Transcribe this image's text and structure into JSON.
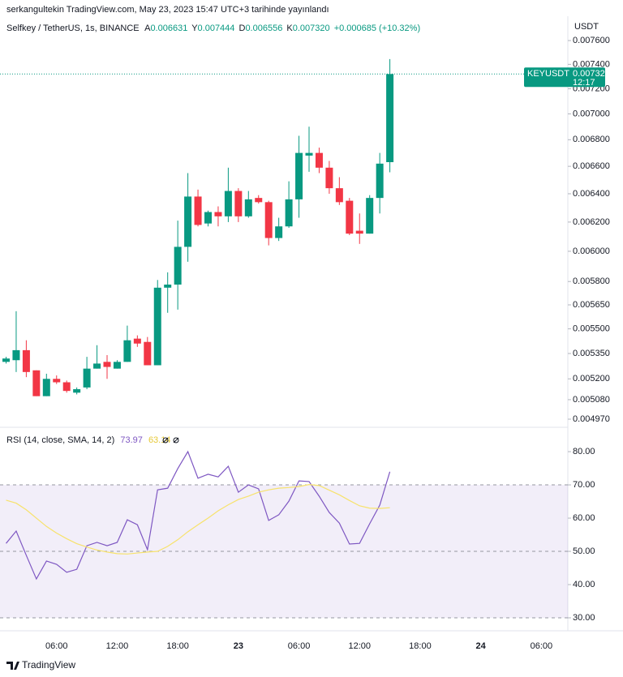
{
  "header": {
    "publisher": "serkangultekin TradingView.com, May 23, 2023 15:47 UTC+3 tarihinde yayınlandı"
  },
  "footer": {
    "brand": "TradingView"
  },
  "chart_data": [
    {
      "type": "candlestick",
      "title": "Selfkey / TetherUS, 1s, BINANCE",
      "ohlc_labels": {
        "open": "A",
        "high": "Y",
        "low": "D",
        "close": "K"
      },
      "change": "+0.000685 (+10.32%)",
      "currency": "USDT",
      "symbol": "KEYUSDT",
      "countdown": "12:17",
      "last_price": {
        "value": 0.00732,
        "label": "0.007320"
      },
      "up_color": "#089981",
      "down_color": "#f23645",
      "log_scale": true,
      "categories": [
        null,
        null,
        null,
        null,
        null,
        "06:00",
        null,
        null,
        null,
        null,
        null,
        "12:00",
        null,
        null,
        null,
        null,
        null,
        "18:00",
        null,
        null,
        null,
        null,
        null,
        "23",
        null,
        null,
        null,
        null,
        null,
        "06:00",
        null,
        null,
        null,
        null,
        null,
        "12:00",
        null,
        null,
        null,
        null,
        null,
        "18:00",
        null,
        null,
        null,
        null,
        null,
        "24",
        null,
        null,
        null,
        null,
        null,
        "06:00",
        null,
        null
      ],
      "open": [
        0.0053,
        0.00531,
        0.00537,
        0.00525,
        0.0051,
        0.0052,
        0.00518,
        0.00512,
        0.00515,
        0.00526,
        0.0053,
        0.00526,
        0.0053,
        0.00544,
        0.00542,
        0.00528,
        0.00576,
        0.00578,
        0.00603,
        0.00638,
        0.00619,
        0.00627,
        0.00624,
        0.00642,
        0.00624,
        0.00637,
        0.00634,
        0.00609,
        0.00617,
        0.00636,
        0.00668,
        0.0067,
        0.00659,
        0.00644,
        0.00635,
        0.00614,
        0.00612,
        0.00637,
        0.006631,
        null,
        null,
        null,
        null,
        null,
        null,
        null,
        null,
        null,
        null,
        null,
        null,
        null,
        null,
        null,
        null,
        null
      ],
      "high": [
        0.00533,
        0.00561,
        0.00543,
        0.00525,
        0.00523,
        0.00522,
        0.00519,
        0.00515,
        0.00533,
        0.0054,
        0.00534,
        0.00531,
        0.00552,
        0.00546,
        0.00545,
        0.00581,
        0.00586,
        0.00621,
        0.00655,
        0.00643,
        0.00628,
        0.00631,
        0.00659,
        0.00644,
        0.00642,
        0.00639,
        0.00635,
        0.00623,
        0.00649,
        0.00683,
        0.0069,
        0.00674,
        0.00664,
        0.00652,
        0.00637,
        0.00626,
        0.00639,
        0.0067,
        0.007444,
        null,
        null,
        null,
        null,
        null,
        null,
        null,
        null,
        null,
        null,
        null,
        null,
        null,
        null,
        null,
        null,
        null
      ],
      "low": [
        0.00529,
        0.00524,
        0.00521,
        0.0051,
        0.0051,
        0.00517,
        0.00512,
        0.00511,
        0.00514,
        0.00526,
        0.0052,
        0.00526,
        0.0053,
        0.00539,
        0.00528,
        0.00528,
        0.0056,
        0.00562,
        0.00593,
        0.00617,
        0.00617,
        0.00617,
        0.0062,
        0.0062,
        0.00623,
        0.00633,
        0.00604,
        0.00607,
        0.00616,
        0.00623,
        0.00656,
        0.00655,
        0.0064,
        0.00632,
        0.00611,
        0.00605,
        0.00612,
        0.00626,
        0.006556,
        null,
        null,
        null,
        null,
        null,
        null,
        null,
        null,
        null,
        null,
        null,
        null,
        null,
        null,
        null,
        null,
        null
      ],
      "close": [
        0.00532,
        0.00537,
        0.00524,
        0.0051,
        0.0052,
        0.00518,
        0.00513,
        0.00514,
        0.00526,
        0.00529,
        0.00527,
        0.0053,
        0.00543,
        0.00541,
        0.00528,
        0.00576,
        0.00578,
        0.00603,
        0.00638,
        0.00618,
        0.00627,
        0.00624,
        0.00642,
        0.00624,
        0.00636,
        0.00634,
        0.00609,
        0.00617,
        0.00636,
        0.0067,
        0.0067,
        0.00659,
        0.00644,
        0.00634,
        0.00612,
        0.00612,
        0.00637,
        0.00662,
        0.00732,
        null,
        null,
        null,
        null,
        null,
        null,
        null,
        null,
        null,
        null,
        null,
        null,
        null,
        null,
        null,
        null,
        null
      ],
      "ylim": [
        0.004934,
        0.007775
      ],
      "yticks": [
        {
          "value": 0.00497,
          "label": "0.004970"
        },
        {
          "value": 0.00508,
          "label": "0.005080"
        },
        {
          "value": 0.0052,
          "label": "0.005200"
        },
        {
          "value": 0.00535,
          "label": "0.005350"
        },
        {
          "value": 0.0055,
          "label": "0.005500"
        },
        {
          "value": 0.00565,
          "label": "0.005650"
        },
        {
          "value": 0.0058,
          "label": "0.005800"
        },
        {
          "value": 0.006,
          "label": "0.006000"
        },
        {
          "value": 0.0062,
          "label": "0.006200"
        },
        {
          "value": 0.0064,
          "label": "0.006400"
        },
        {
          "value": 0.0066,
          "label": "0.006600"
        },
        {
          "value": 0.0068,
          "label": "0.006800"
        },
        {
          "value": 0.007,
          "label": "0.007000"
        },
        {
          "value": 0.0072,
          "label": "0.007200"
        },
        {
          "value": 0.0074,
          "label": "0.007400"
        },
        {
          "value": 0.0076,
          "label": "0.007600"
        }
      ]
    },
    {
      "type": "line",
      "title": "RSI (14, close, SMA, 14, 2)",
      "band": [
        30,
        70
      ],
      "band_color": "rgba(126,87,194,0.1)",
      "hlines": [
        70,
        50,
        30
      ],
      "series": [
        {
          "color": "#7e57c2",
          "values": [
            52.4,
            56.1,
            48.8,
            41.7,
            47.1,
            46.1,
            43.7,
            44.6,
            51.7,
            52.7,
            51.7,
            52.7,
            59.5,
            58.0,
            50.5,
            68.5,
            69.0,
            74.9,
            80.0,
            72.0,
            73.2,
            72.4,
            75.6,
            67.8,
            70.0,
            68.8,
            59.3,
            61.0,
            65.1,
            71.2,
            71.0,
            66.6,
            61.7,
            58.5,
            52.2,
            52.4,
            58.3,
            63.9,
            73.97,
            null,
            null,
            null,
            null,
            null,
            null,
            null,
            null,
            null,
            null,
            null,
            null,
            null,
            null,
            null,
            null,
            null
          ]
        },
        {
          "color": "#f7e26b",
          "values": [
            65.4,
            64.5,
            62.5,
            60.0,
            57.5,
            55.5,
            53.8,
            52.3,
            51.3,
            50.4,
            49.8,
            49.3,
            49.2,
            49.5,
            49.8,
            50.0,
            51.5,
            53.5,
            55.9,
            58.0,
            60.0,
            62.2,
            64.0,
            65.6,
            66.6,
            67.8,
            68.5,
            69.0,
            69.2,
            69.5,
            70.1,
            69.8,
            68.4,
            67.0,
            65.3,
            63.7,
            63.0,
            62.9,
            63.14,
            null,
            null,
            null,
            null,
            null,
            null,
            null,
            null,
            null,
            null,
            null,
            null,
            null,
            null,
            null,
            null,
            null
          ]
        }
      ],
      "ylim": [
        26.1,
        86.6
      ],
      "yticks": [
        {
          "value": 30,
          "label": "30.00"
        },
        {
          "value": 40,
          "label": "40.00"
        },
        {
          "value": 50,
          "label": "50.00"
        },
        {
          "value": 60,
          "label": "60.00"
        },
        {
          "value": 70,
          "label": "70.00"
        },
        {
          "value": 80,
          "label": "80.00"
        }
      ]
    }
  ]
}
